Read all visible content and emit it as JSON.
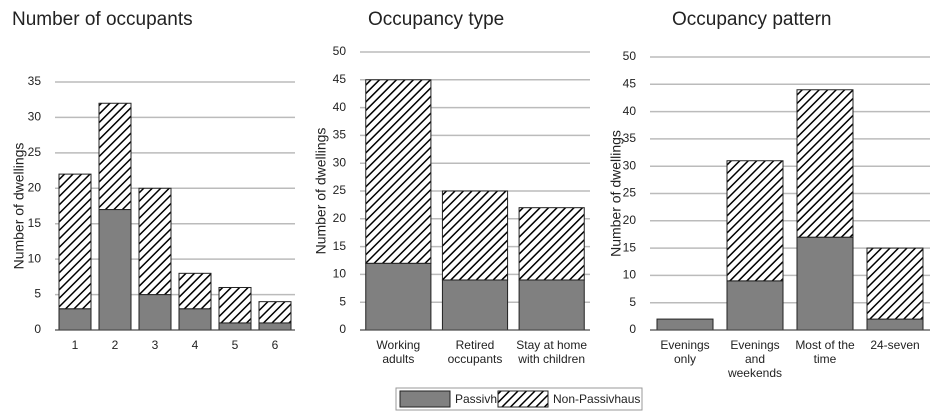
{
  "chart_data": [
    {
      "type": "stacked_bar",
      "title": "Number of occupants",
      "y_label": "Number of dwellings",
      "categories": [
        "1",
        "2",
        "3",
        "4",
        "5",
        "6"
      ],
      "series": [
        {
          "name": "Passivhaus",
          "color": "#808080",
          "fill": "solid",
          "values": [
            3,
            17,
            5,
            3,
            1,
            1
          ]
        },
        {
          "name": "Non-Passivhaus",
          "color": "#000000",
          "fill": "hatch",
          "values": [
            19,
            15,
            15,
            5,
            5,
            3
          ]
        }
      ],
      "ylim": [
        0,
        35
      ],
      "yticks": [
        0,
        5,
        10,
        15,
        20,
        25,
        30,
        35
      ],
      "grid": true
    },
    {
      "type": "stacked_bar",
      "title": "Occupancy type",
      "y_label": "Number of dwellings",
      "categories": [
        "Working adults",
        "Retired occupants",
        "Stay at home with children"
      ],
      "series": [
        {
          "name": "Passivhaus",
          "color": "#808080",
          "fill": "solid",
          "values": [
            12,
            9,
            9
          ]
        },
        {
          "name": "Non-Passivhaus",
          "color": "#000000",
          "fill": "hatch",
          "values": [
            33,
            16,
            13
          ]
        }
      ],
      "ylim": [
        0,
        50
      ],
      "yticks": [
        0,
        5,
        10,
        15,
        20,
        25,
        30,
        35,
        40,
        45,
        50
      ],
      "grid": true
    },
    {
      "type": "stacked_bar",
      "title": "Occupancy pattern",
      "y_label": "Number of dwellings",
      "categories": [
        "Evenings only",
        "Evenings and weekends",
        "Most of the time",
        "24-seven"
      ],
      "series": [
        {
          "name": "Passivhaus",
          "color": "#808080",
          "fill": "solid",
          "values": [
            2,
            9,
            17,
            2
          ]
        },
        {
          "name": "Non-Passivhaus",
          "color": "#000000",
          "fill": "hatch",
          "values": [
            0,
            22,
            27,
            13
          ]
        }
      ],
      "ylim": [
        0,
        50
      ],
      "yticks": [
        0,
        5,
        10,
        15,
        20,
        25,
        30,
        35,
        40,
        45,
        50
      ],
      "grid": true
    }
  ]
}
